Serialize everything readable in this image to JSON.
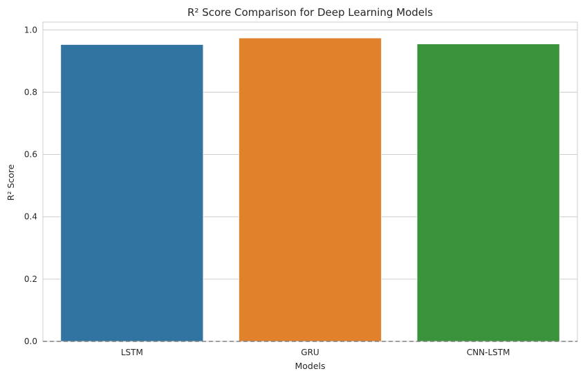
{
  "chart_data": {
    "type": "bar",
    "title": "R² Score Comparison for Deep Learning Models",
    "xlabel": "Models",
    "ylabel": "R² Score",
    "categories": [
      "LSTM",
      "GRU",
      "CNN-LSTM"
    ],
    "values": [
      0.953,
      0.974,
      0.955
    ],
    "colors": [
      "#3274a1",
      "#e1812c",
      "#3a923a"
    ],
    "ylim": [
      0,
      1.025
    ],
    "yticks": [
      "0.0",
      "0.2",
      "0.4",
      "0.6",
      "0.8",
      "1.0"
    ],
    "grid": true,
    "reference_line": {
      "y": 0,
      "style": "dashed",
      "color": "#808080"
    },
    "style": {
      "grid_color": "#cccccc",
      "spine_color": "#cccccc",
      "text_color": "#262626"
    }
  }
}
